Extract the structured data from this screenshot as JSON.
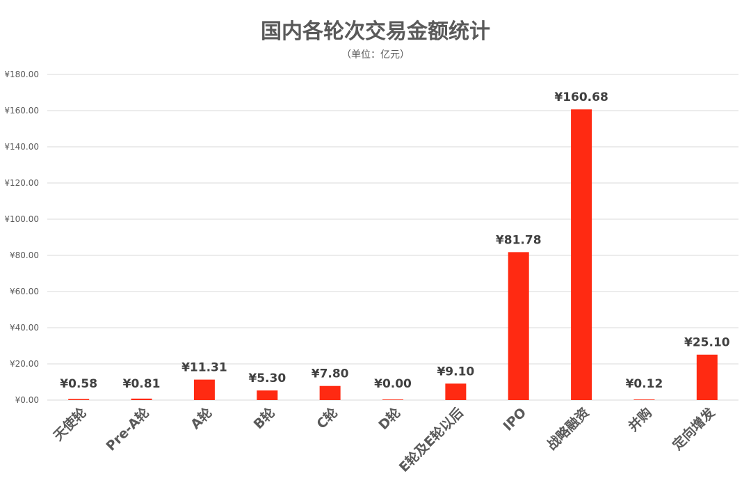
{
  "chart_data": {
    "type": "bar",
    "title": "国内各轮次交易金额统计",
    "subtitle": "（单位：亿元）",
    "categories": [
      "天使轮",
      "Pre-A轮",
      "A轮",
      "B轮",
      "C轮",
      "D轮",
      "E轮及E轮以后",
      "IPO",
      "战略融资",
      "并购",
      "定向增发"
    ],
    "values": [
      0.58,
      0.81,
      11.31,
      5.3,
      7.8,
      0.0,
      9.1,
      81.78,
      160.68,
      0.12,
      25.1
    ],
    "data_labels": [
      "¥0.58",
      "¥0.81",
      "¥11.31",
      "¥5.30",
      "¥7.80",
      "¥0.00",
      "¥9.10",
      "¥81.78",
      "¥160.68",
      "¥0.12",
      "¥25.10"
    ],
    "highlight_label_index": 5,
    "ylim": [
      0,
      180
    ],
    "yticks": [
      0,
      20,
      40,
      60,
      80,
      100,
      120,
      140,
      160,
      180
    ],
    "ytick_labels": [
      "¥0.00",
      "¥20.00",
      "¥40.00",
      "¥60.00",
      "¥80.00",
      "¥100.00",
      "¥120.00",
      "¥140.00",
      "¥160.00",
      "¥180.00"
    ],
    "grid": true,
    "colors": {
      "bar": "#ff2a12",
      "highlight_label": "#ff0000",
      "grid": "#d9d9d9"
    }
  }
}
